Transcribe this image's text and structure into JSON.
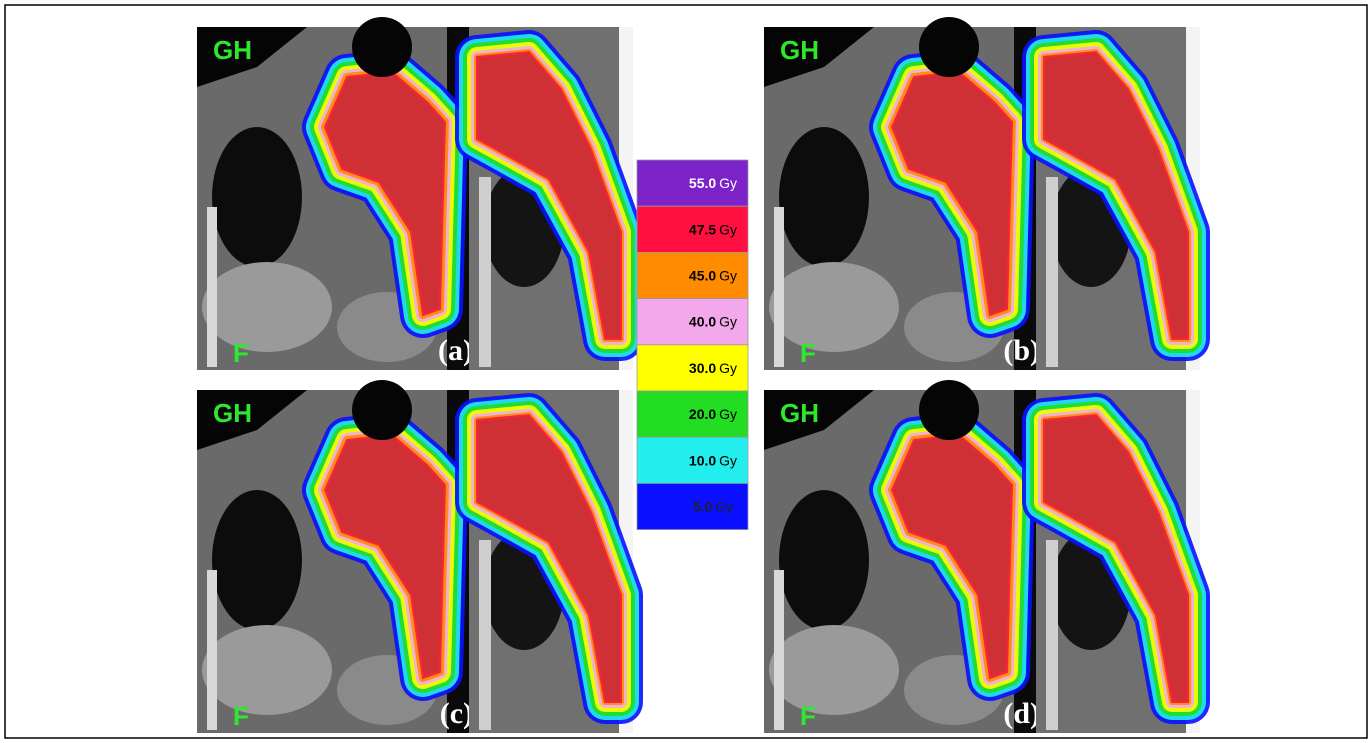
{
  "panels": [
    {
      "label": "(a)",
      "top_label": "GH",
      "bottom_label": "F"
    },
    {
      "label": "(b)",
      "top_label": "GH",
      "bottom_label": "F"
    },
    {
      "label": "(c)",
      "top_label": "GH",
      "bottom_label": "F"
    },
    {
      "label": "(d)",
      "top_label": "GH",
      "bottom_label": "F"
    }
  ],
  "legend": [
    {
      "dose": "55.0",
      "unit": "Gy",
      "color": "#7b22c8"
    },
    {
      "dose": "47.5",
      "unit": "Gy",
      "color": "#ff1040"
    },
    {
      "dose": "45.0",
      "unit": "Gy",
      "color": "#ff8c00"
    },
    {
      "dose": "40.0",
      "unit": "Gy",
      "color": "#f4a8ec"
    },
    {
      "dose": "30.0",
      "unit": "Gy",
      "color": "#ffff00"
    },
    {
      "dose": "20.0",
      "unit": "Gy",
      "color": "#22dd22"
    },
    {
      "dose": "10.0",
      "unit": "Gy",
      "color": "#22eeee"
    },
    {
      "dose": "5.0",
      "unit": "Gy",
      "color": "#0a10ff"
    }
  ]
}
